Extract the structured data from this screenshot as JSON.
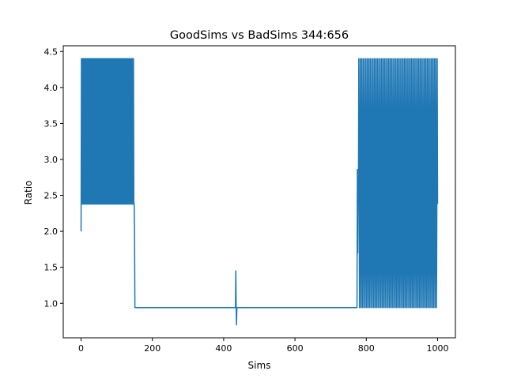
{
  "chart_data": {
    "type": "line",
    "title": "GoodSims vs BadSims 344:656",
    "xlabel": "Sims",
    "ylabel": "Ratio",
    "xlim": [
      -50,
      1050
    ],
    "ylim": [
      0.52,
      4.58
    ],
    "x_ticks": [
      0,
      200,
      400,
      600,
      800,
      1000
    ],
    "y_ticks": [
      1.0,
      1.5,
      2.0,
      2.5,
      3.0,
      3.5,
      4.0,
      4.5
    ],
    "x_tick_labels": [
      "0",
      "200",
      "400",
      "600",
      "800",
      "1000"
    ],
    "y_tick_labels": [
      "1.0",
      "1.5",
      "2.0",
      "2.5",
      "3.0",
      "3.5",
      "4.0",
      "4.5"
    ],
    "grid": false,
    "line_color": "#1f77b4",
    "series": [
      {
        "segments": [
          {
            "x_start": 0,
            "x_end": 0,
            "values": [
              2.0
            ]
          },
          {
            "x_start": 1,
            "x_end": 148,
            "alternating": [
              4.4,
              2.38
            ]
          },
          {
            "x_start": 149,
            "x_end": 151,
            "values": [
              2.38,
              2.0,
              0.94
            ]
          },
          {
            "x_start": 152,
            "x_end": 433,
            "values": [
              0.94
            ]
          },
          {
            "x_start": 434,
            "x_end": 437,
            "values": [
              1.45,
              0.94,
              0.7,
              0.94
            ]
          },
          {
            "x_start": 438,
            "x_end": 774,
            "values": [
              0.94
            ]
          },
          {
            "x_start": 775,
            "x_end": 778,
            "values": [
              2.86,
              1.7,
              2.86,
              2.38
            ]
          },
          {
            "x_start": 779,
            "x_end": 1000,
            "cycle": [
              4.4,
              2.38,
              0.94,
              2.38
            ]
          }
        ]
      }
    ]
  }
}
